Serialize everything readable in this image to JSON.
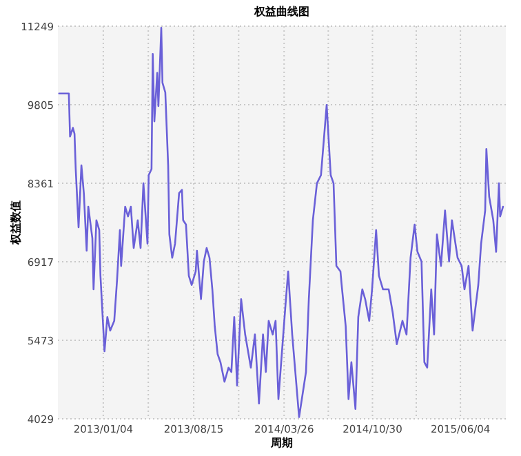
{
  "chart_data": {
    "type": "line",
    "title": "权益曲线图",
    "xlabel": "周期",
    "ylabel": "权益数值",
    "x": [
      "2012-09-17",
      "2012-10-11",
      "2012-10-14",
      "2012-10-21",
      "2012-10-25",
      "2012-10-28",
      "2012-11-04",
      "2012-11-11",
      "2012-11-17",
      "2012-11-24",
      "2012-11-28",
      "2012-12-08",
      "2012-12-11",
      "2012-12-18",
      "2012-12-25",
      "2012-12-28",
      "2013-01-07",
      "2013-01-14",
      "2013-01-21",
      "2013-01-31",
      "2013-02-07",
      "2013-02-14",
      "2013-02-17",
      "2013-02-27",
      "2013-03-06",
      "2013-03-13",
      "2013-03-20",
      "2013-03-30",
      "2013-04-06",
      "2013-04-13",
      "2013-04-23",
      "2013-04-26",
      "2013-05-03",
      "2013-05-06",
      "2013-05-10",
      "2013-05-17",
      "2013-05-20",
      "2013-05-27",
      "2013-05-30",
      "2013-06-06",
      "2013-06-13",
      "2013-06-16",
      "2013-06-23",
      "2013-06-30",
      "2013-07-10",
      "2013-07-17",
      "2013-07-20",
      "2013-07-27",
      "2013-08-03",
      "2013-08-10",
      "2013-08-20",
      "2013-08-23",
      "2013-09-02",
      "2013-09-09",
      "2013-09-16",
      "2013-09-23",
      "2013-09-30",
      "2013-10-06",
      "2013-10-13",
      "2013-10-20",
      "2013-10-30",
      "2013-11-09",
      "2013-11-16",
      "2013-11-23",
      "2013-11-30",
      "2013-12-10",
      "2013-12-20",
      "2014-01-03",
      "2014-01-13",
      "2014-01-23",
      "2014-02-02",
      "2014-02-09",
      "2014-02-16",
      "2014-02-26",
      "2014-03-05",
      "2014-03-12",
      "2014-03-29",
      "2014-04-05",
      "2014-04-15",
      "2014-05-02",
      "2014-05-19",
      "2014-05-26",
      "2014-06-05",
      "2014-06-15",
      "2014-06-25",
      "2014-07-09",
      "2014-07-19",
      "2014-07-26",
      "2014-08-02",
      "2014-08-12",
      "2014-08-15",
      "2014-08-25",
      "2014-09-01",
      "2014-09-08",
      "2014-09-18",
      "2014-09-25",
      "2014-10-05",
      "2014-10-12",
      "2014-10-22",
      "2014-10-29",
      "2014-11-08",
      "2014-11-15",
      "2014-11-25",
      "2014-12-09",
      "2014-12-19",
      "2014-12-29",
      "2015-01-12",
      "2015-01-22",
      "2015-02-01",
      "2015-02-11",
      "2015-02-18",
      "2015-02-28",
      "2015-03-07",
      "2015-03-14",
      "2015-03-24",
      "2015-03-31",
      "2015-04-07",
      "2015-04-17",
      "2015-04-27",
      "2015-05-07",
      "2015-05-14",
      "2015-05-28",
      "2015-06-07",
      "2015-06-14",
      "2015-06-24",
      "2015-07-04",
      "2015-07-18",
      "2015-07-25",
      "2015-08-04",
      "2015-08-07",
      "2015-08-14",
      "2015-08-24",
      "2015-08-31",
      "2015-09-07",
      "2015-09-10",
      "2015-09-17"
    ],
    "series": [
      {
        "color": "#6a60d8",
        "values": [
          10010,
          10010,
          9220,
          9380,
          9270,
          8620,
          7550,
          8690,
          8180,
          7120,
          7930,
          7350,
          6410,
          7680,
          7500,
          6660,
          5270,
          5900,
          5650,
          5830,
          6590,
          7500,
          6840,
          7930,
          7750,
          7930,
          7170,
          7680,
          7170,
          8360,
          7250,
          8510,
          8620,
          10740,
          9500,
          10390,
          9780,
          11220,
          10210,
          10030,
          8690,
          7420,
          6990,
          7250,
          8180,
          8240,
          7680,
          7600,
          6660,
          6490,
          6740,
          7120,
          6230,
          6920,
          7170,
          6990,
          6410,
          5730,
          5220,
          5070,
          4710,
          4970,
          4890,
          5900,
          4640,
          6230,
          5580,
          4970,
          5580,
          4310,
          5580,
          4890,
          5830,
          5580,
          5830,
          4390,
          6080,
          6740,
          5580,
          4060,
          4890,
          6230,
          7680,
          8360,
          8510,
          9800,
          8510,
          8360,
          6840,
          6740,
          6490,
          5730,
          4390,
          5070,
          4210,
          5900,
          6410,
          6230,
          5830,
          6410,
          7500,
          6660,
          6410,
          6410,
          5980,
          5400,
          5830,
          5580,
          6990,
          7600,
          7100,
          6920,
          5070,
          4970,
          6410,
          5580,
          7420,
          6840,
          7860,
          6920,
          7680,
          6990,
          6840,
          6410,
          6840,
          5650,
          6490,
          7250,
          7860,
          8990,
          8110,
          7680,
          7100,
          8360,
          7750,
          7930
        ]
      }
    ],
    "xlim": [
      "2012-09-14",
      "2015-09-24"
    ],
    "xticks": [
      {
        "value": "2013-01-04",
        "label": "2013/01/04"
      },
      {
        "value": "2013-04-25",
        "label": null
      },
      {
        "value": "2013-08-15",
        "label": "2013/08/15"
      },
      {
        "value": "2013-12-04",
        "label": null
      },
      {
        "value": "2014-03-26",
        "label": "2014/03/26"
      },
      {
        "value": "2014-07-13",
        "label": null
      },
      {
        "value": "2014-10-30",
        "label": "2014/10/30"
      },
      {
        "value": "2015-02-15",
        "label": null
      },
      {
        "value": "2015-06-04",
        "label": "2015/06/04"
      }
    ],
    "ylim": [
      4029,
      11249
    ],
    "yticks": [
      4029,
      5473,
      6917,
      8361,
      9805,
      11249
    ],
    "grid": true
  }
}
